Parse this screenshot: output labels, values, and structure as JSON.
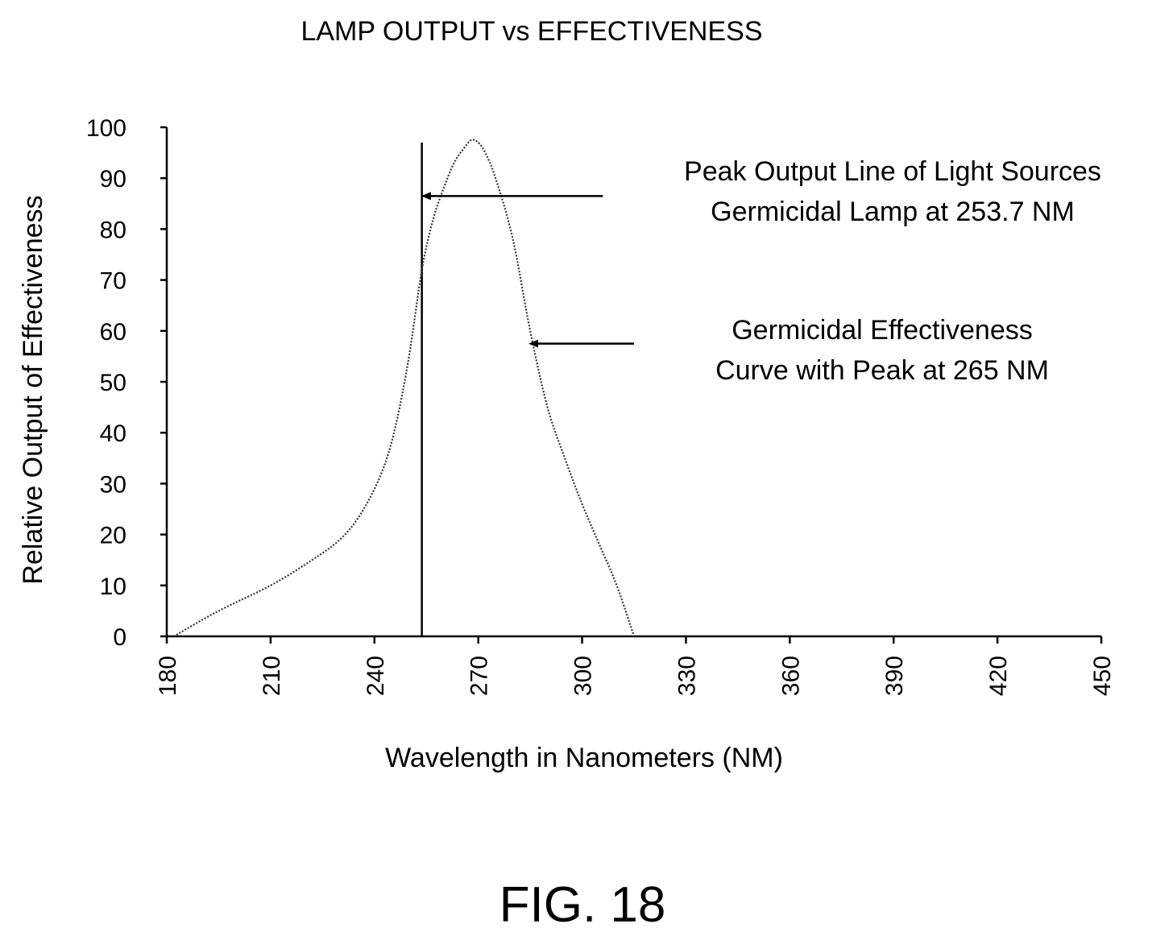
{
  "chart_data": {
    "type": "line",
    "title": "LAMP OUTPUT vs EFFECTIVENESS",
    "xlabel": "Wavelength in Nanometers (NM)",
    "ylabel": "Relative Output of Effectiveness",
    "xlim": [
      180,
      450
    ],
    "ylim": [
      0,
      100
    ],
    "x_ticks": [
      "180",
      "210",
      "240",
      "270",
      "300",
      "330",
      "360",
      "390",
      "420",
      "450"
    ],
    "y_ticks": [
      "0",
      "10",
      "20",
      "30",
      "40",
      "50",
      "60",
      "70",
      "80",
      "90",
      "100"
    ],
    "grid": false,
    "series": [
      {
        "name": "Germicidal Effectiveness Curve with Peak at 265 NM",
        "style": "dotted",
        "x": [
          182,
          195,
          210,
          222,
          230,
          236,
          242,
          246,
          250,
          253.7,
          257,
          260,
          263,
          266,
          268,
          270,
          272,
          275,
          280,
          285,
          290,
          295,
          300,
          305,
          310,
          315
        ],
        "y": [
          0,
          5,
          10,
          15,
          19,
          24,
          32,
          41,
          55,
          72,
          82,
          88,
          93,
          96,
          97.5,
          97,
          95,
          90,
          78,
          60,
          45,
          35,
          26,
          18,
          10,
          0
        ]
      }
    ],
    "vlines": [
      {
        "x": 253.7,
        "y_range": [
          0,
          97
        ]
      }
    ],
    "annotations": [
      {
        "lines": [
          "Peak Output Line of Light Sources",
          "Germicidal Lamp at 253.7 NM"
        ],
        "arrow_tip": {
          "x": 254,
          "y": 86.5
        },
        "arrow_tail": {
          "x": 306,
          "y": 86.5
        }
      },
      {
        "lines": [
          "Germicidal Effectiveness",
          "Curve with Peak at 265 NM"
        ],
        "arrow_tip": {
          "x": 285,
          "y": 57.5
        },
        "arrow_tail": {
          "x": 315,
          "y": 57.5
        }
      }
    ]
  },
  "figure_label": "FIG. 18"
}
